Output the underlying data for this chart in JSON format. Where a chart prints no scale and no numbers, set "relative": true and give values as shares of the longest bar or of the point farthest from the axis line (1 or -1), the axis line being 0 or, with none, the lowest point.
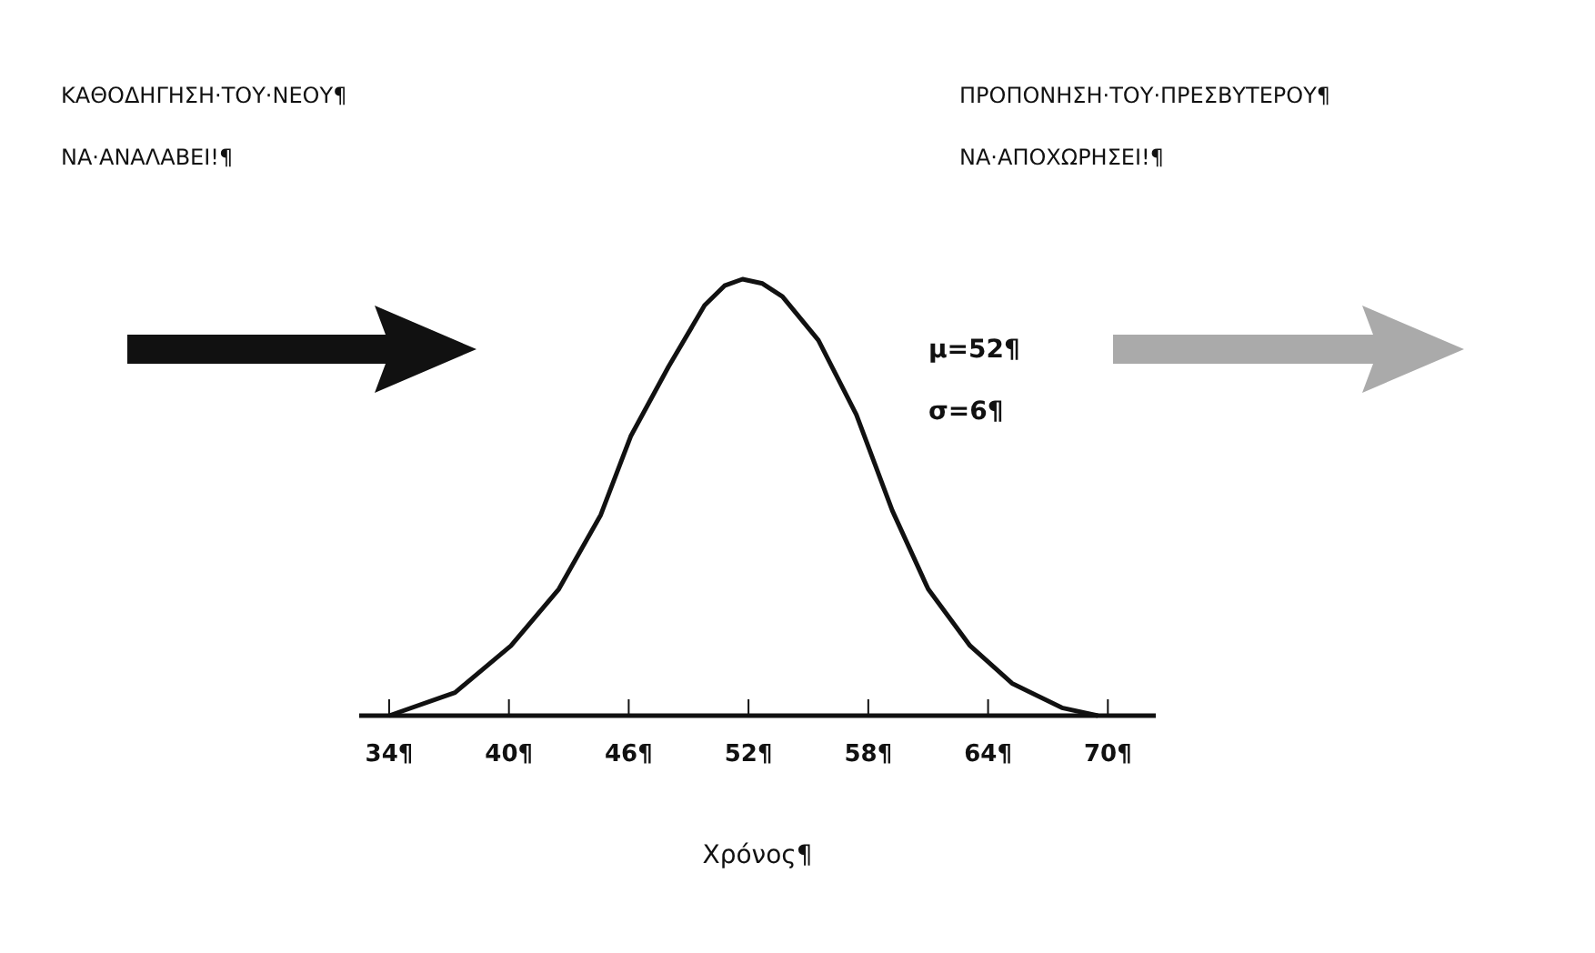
{
  "chart_data": {
    "type": "line",
    "relative": true,
    "xlabel": "Χρόνος¶",
    "annotations": [
      "ΚΑΘΟΔΗΓΗΣΗ·ΤΟΥ·ΝΕΟΥ¶",
      "ΝΑ·ΑΝΑΛΑΒΕΙ!¶",
      "ΠΡΟΠΟΝΗΣΗ·ΤΟΥ·ΠΡΕΣΒΥΤΕΡΟΥ¶",
      "ΝΑ·ΑΠΟΧΩΡΗΣΕΙ!¶",
      "μ=52¶",
      "σ=6¶"
    ],
    "x": [
      34,
      37.3,
      40.1,
      42.5,
      44.6,
      46.1,
      48.0,
      49.8,
      50.8,
      51.7,
      52.7,
      53.7,
      55.5,
      57.4,
      59.2,
      61.0,
      63.1,
      65.2,
      67.7,
      69.5
    ],
    "series": [
      {
        "color": "#111111",
        "values": [
          0,
          0.053,
          0.16,
          0.29,
          0.46,
          0.64,
          0.8,
          0.94,
          0.985,
          1,
          0.99,
          0.96,
          0.86,
          0.69,
          0.47,
          0.29,
          0.16,
          0.074,
          0.018,
          0
        ]
      }
    ],
    "xlim": [
      32.5,
      72.4
    ],
    "xticks": [
      {
        "value": 34,
        "label": "34¶"
      },
      {
        "value": 40,
        "label": "40¶"
      },
      {
        "value": 46,
        "label": "46¶"
      },
      {
        "value": 52,
        "label": "52¶"
      },
      {
        "value": 58,
        "label": "58¶"
      },
      {
        "value": 64,
        "label": "64¶"
      },
      {
        "value": 70,
        "label": "70¶"
      }
    ],
    "tick_labels": "x",
    "grid": false,
    "marker": "none",
    "line_style": "solid"
  }
}
